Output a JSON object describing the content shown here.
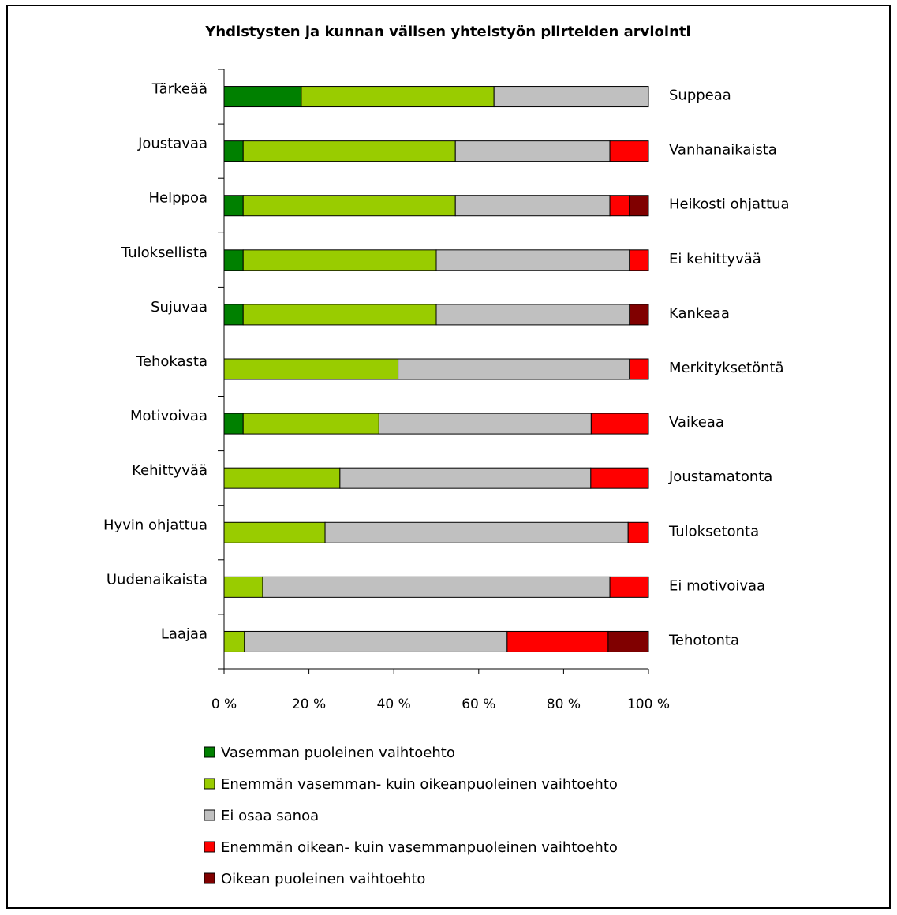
{
  "chart_data": {
    "type": "bar",
    "orientation": "horizontal",
    "stacked": "percent",
    "title": "Yhdistysten ja kunnan välisen yhteistyön piirteiden arviointi",
    "categories_left": [
      "Tärkeää",
      "Joustavaa",
      "Helppoa",
      "Tuloksellista",
      "Sujuvaa",
      "Tehokasta",
      "Motivoivaa",
      "Kehittyvää",
      "Hyvin ohjattua",
      "Uudenaikaista",
      "Laajaa"
    ],
    "categories_right": [
      "Suppeaa",
      "Vanhanaikaista",
      "Heikosti ohjattua",
      "Ei kehittyvää",
      "Kankeaa",
      "Merkityksetöntä",
      "Vaikeaa",
      "Joustamatonta",
      "Tuloksetonta",
      "Ei motivoivaa",
      "Tehotonta"
    ],
    "series": [
      {
        "name": "Vasemman puoleinen vaihtoehto",
        "color": "#008000",
        "values": [
          18.2,
          4.5,
          4.5,
          4.5,
          4.5,
          0,
          4.5,
          0,
          0,
          0,
          0
        ]
      },
      {
        "name": "Enemmän vasemman- kuin oikeanpuoleinen vaihtoehto",
        "color": "#99CC00",
        "values": [
          45.4,
          50.0,
          50.0,
          45.5,
          45.5,
          41.0,
          32.0,
          27.3,
          23.8,
          9.1,
          4.8
        ]
      },
      {
        "name": "Ei osaa sanoa",
        "color": "#C0C0C0",
        "values": [
          36.4,
          36.4,
          36.4,
          45.5,
          45.5,
          54.5,
          50.0,
          59.1,
          71.4,
          81.8,
          61.9
        ]
      },
      {
        "name": "Enemmän oikean- kuin vasemmanpuoleinen vaihtoehto",
        "color": "#FF0000",
        "values": [
          0,
          9.1,
          4.6,
          4.5,
          0,
          4.5,
          13.5,
          13.6,
          4.8,
          9.1,
          23.8
        ]
      },
      {
        "name": "Oikean puoleinen vaihtoehto",
        "color": "#800000",
        "values": [
          0,
          0,
          4.5,
          0,
          4.5,
          0,
          0,
          0,
          0,
          0,
          9.5
        ]
      }
    ],
    "xlim": [
      0,
      100
    ],
    "x_ticks": [
      "0 %",
      "20 %",
      "40 %",
      "60 %",
      "80 %",
      "100 %"
    ],
    "legend_position": "bottom",
    "grid": false
  }
}
